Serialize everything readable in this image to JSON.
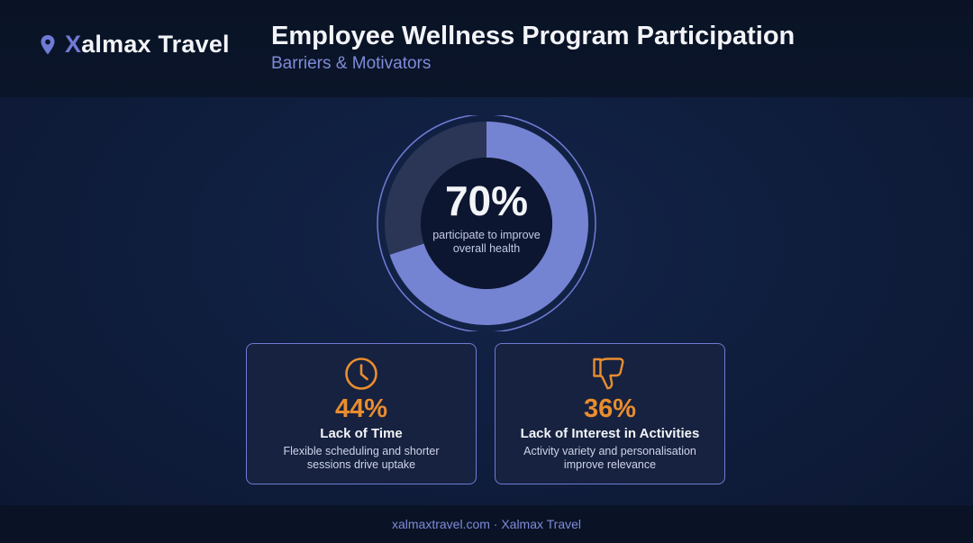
{
  "brand": {
    "first_letter": "X",
    "rest": "almax Travel",
    "icon": "map-pin-icon"
  },
  "header": {
    "title": "Employee Wellness Program Participation",
    "subtitle": "Barriers & Motivators"
  },
  "colors": {
    "accent": "#6f7bd6",
    "donut_fill": "#7583d3",
    "donut_track": "#2b3656",
    "highlight": "#e98d2f",
    "background": "#0f1d3c"
  },
  "chart_data": {
    "type": "pie",
    "values": [
      70,
      30
    ],
    "value_label": "70%",
    "caption": "participate to improve overall health"
  },
  "cards": [
    {
      "icon": "clock-icon",
      "value": "44%",
      "title": "Lack of Time",
      "description": "Flexible scheduling and shorter sessions drive uptake"
    },
    {
      "icon": "thumbs-down-icon",
      "value": "36%",
      "title": "Lack of Interest in Activities",
      "description": "Activity variety and personalisation improve relevance"
    }
  ],
  "footer": {
    "text": "xalmaxtravel.com · Xalmax Travel"
  }
}
